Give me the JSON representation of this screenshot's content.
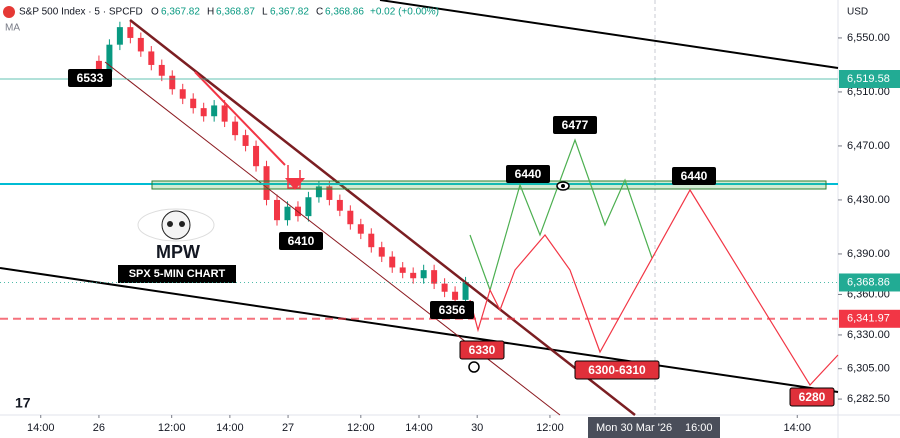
{
  "header": {
    "symbol": "S&P 500 Index · 5 · SPCFD",
    "o_label": "O",
    "open": "6,367.82",
    "h_label": "H",
    "high": "6,368.87",
    "l_label": "L",
    "low": "6,367.82",
    "c_label": "C",
    "close": "6,368.86",
    "change": "+0.02 (+0.00%)",
    "indicator": "MA",
    "currency": "USD",
    "crosshair_time": "Mon 30 Mar '26",
    "crosshair_clock": "16:00",
    "brand": "MPW",
    "caption": "SPX 5-MIN CHART"
  },
  "chart_data": {
    "type": "candlestick",
    "x": [
      3,
      3.36,
      3.72,
      4.08,
      4.44,
      4.8,
      5.16,
      5.52,
      5.88,
      6.24,
      6.6,
      6.96,
      7.32,
      7.68,
      8.04,
      8.4,
      8.76,
      9.12,
      9.48,
      9.84,
      10.2,
      10.56,
      10.92,
      11.28,
      11.64,
      12,
      12.36,
      12.72,
      13.08,
      13.44,
      13.8,
      14.16,
      14.52,
      14.88,
      15.24,
      15.6
    ],
    "open": [
      6533,
      6525,
      6545,
      6558,
      6550,
      6540,
      6530,
      6522,
      6512,
      6505,
      6498,
      6492,
      6500,
      6488,
      6478,
      6470,
      6455,
      6430,
      6415,
      6425,
      6418,
      6432,
      6440,
      6430,
      6422,
      6412,
      6405,
      6395,
      6388,
      6380,
      6376,
      6372,
      6378,
      6368,
      6362,
      6356
    ],
    "high": [
      6537,
      6549,
      6562,
      6562,
      6554,
      6544,
      6534,
      6526,
      6516,
      6509,
      6502,
      6504,
      6504,
      6492,
      6482,
      6474,
      6459,
      6434,
      6429,
      6429,
      6436,
      6444,
      6444,
      6434,
      6426,
      6416,
      6409,
      6399,
      6392,
      6384,
      6380,
      6382,
      6382,
      6372,
      6366,
      6373
    ],
    "low": [
      6521,
      6521,
      6541,
      6546,
      6536,
      6526,
      6518,
      6508,
      6501,
      6494,
      6488,
      6488,
      6484,
      6474,
      6466,
      6451,
      6426,
      6411,
      6411,
      6414,
      6414,
      6428,
      6426,
      6418,
      6408,
      6401,
      6391,
      6384,
      6376,
      6372,
      6368,
      6368,
      6364,
      6358,
      6352,
      6352
    ],
    "close": [
      6525,
      6545,
      6558,
      6550,
      6540,
      6530,
      6522,
      6512,
      6505,
      6498,
      6492,
      6500,
      6488,
      6478,
      6470,
      6455,
      6430,
      6415,
      6425,
      6418,
      6432,
      6440,
      6430,
      6422,
      6412,
      6405,
      6395,
      6388,
      6380,
      6376,
      6372,
      6378,
      6368,
      6362,
      6356,
      6369
    ],
    "up_color": "#089981",
    "down_color": "#f23645",
    "xlim": [
      -0.4,
      28.4
    ],
    "xticks": [
      {
        "value": 1,
        "label": "14:00"
      },
      {
        "value": 3,
        "label": "26"
      },
      {
        "value": 5.5,
        "label": "12:00"
      },
      {
        "value": 7.5,
        "label": "14:00"
      },
      {
        "value": 9.5,
        "label": "27"
      },
      {
        "value": 12,
        "label": "12:00"
      },
      {
        "value": 14,
        "label": "14:00"
      },
      {
        "value": 16,
        "label": "30"
      },
      {
        "value": 18.5,
        "label": "12:00"
      },
      {
        "value": 27,
        "label": "14:00"
      }
    ],
    "ylim": [
      6270.7,
      6578.1
    ],
    "yticks": [
      {
        "value": 6282.5,
        "label": "6,282.50"
      },
      {
        "value": 6305,
        "label": "6,305.00"
      },
      {
        "value": 6330,
        "label": "6,330.00"
      },
      {
        "value": 6360,
        "label": "6,360.00"
      },
      {
        "value": 6390,
        "label": "6,390.00"
      },
      {
        "value": 6430,
        "label": "6,430.00"
      },
      {
        "value": 6470,
        "label": "6,470.00"
      },
      {
        "value": 6510,
        "label": "6,510.00"
      },
      {
        "value": 6550,
        "label": "6,550.00"
      }
    ],
    "price_lines": [
      {
        "value": 6519.58,
        "label": "6,519.58",
        "color": "#22ab94"
      },
      {
        "value": 6368.86,
        "label": "6,368.86",
        "color": "#22ab94"
      },
      {
        "value": 6341.97,
        "label": "6,341.97",
        "color": "#f23645"
      }
    ],
    "annotations": [
      "6533",
      "6410",
      "6356",
      "6440",
      "6477",
      "6440",
      "6330",
      "6300-6310",
      "6280"
    ]
  }
}
